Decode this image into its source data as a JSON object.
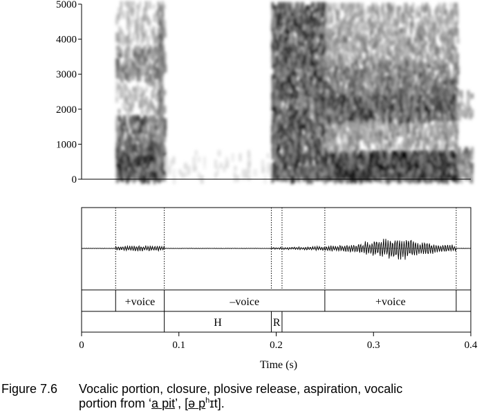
{
  "spectrogram": {
    "y_ticks": [
      "0",
      "1000",
      "2000",
      "3000",
      "4000",
      "5000"
    ],
    "y_range": [
      0,
      5000
    ],
    "time_range": [
      0,
      0.4
    ]
  },
  "waveform": {
    "boundaries_s": [
      0.035,
      0.085,
      0.195,
      0.206,
      0.25,
      0.385
    ]
  },
  "tiers": {
    "voicing": [
      {
        "label": "",
        "start": 0,
        "end": 0.035
      },
      {
        "label": "+voice",
        "start": 0.035,
        "end": 0.085
      },
      {
        "label": "–voice",
        "start": 0.085,
        "end": 0.25
      },
      {
        "label": "+voice",
        "start": 0.25,
        "end": 0.385
      },
      {
        "label": "",
        "start": 0.385,
        "end": 0.4
      }
    ],
    "phase": [
      {
        "label": "",
        "start": 0,
        "end": 0.085
      },
      {
        "label": "H",
        "start": 0.085,
        "end": 0.195
      },
      {
        "label": "R",
        "start": 0.195,
        "end": 0.206
      },
      {
        "label": "",
        "start": 0.206,
        "end": 0.4
      }
    ]
  },
  "x_axis": {
    "ticks": [
      {
        "value": 0,
        "label": "0"
      },
      {
        "value": 0.1,
        "label": "0.1"
      },
      {
        "value": 0.2,
        "label": "0.2"
      },
      {
        "value": 0.3,
        "label": "0.3"
      },
      {
        "value": 0.4,
        "label": "0.4"
      }
    ],
    "label": "Time (s)"
  },
  "caption": {
    "number": "Figure 7.6",
    "line1": "Vocalic portion, closure, plosive release, aspiration, vocalic",
    "line2_a": "portion from ‘",
    "line2_u1": "a",
    "line2_sp1": " ",
    "line2_u2": "pit",
    "line2_b": "’, [",
    "line2_u3": "ə",
    "line2_sp2": " ",
    "line2_u4": "p",
    "line2_sup": "h",
    "line2_c": "ɪt]."
  },
  "colors": {
    "ink": "#000000",
    "paper": "#ffffff"
  }
}
